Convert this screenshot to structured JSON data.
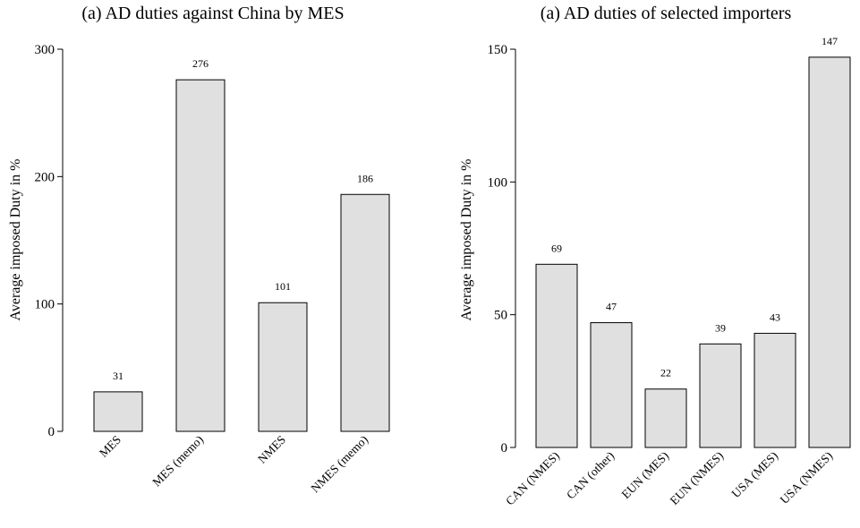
{
  "chart_data": [
    {
      "type": "bar",
      "title": "(a) AD duties against China by MES",
      "ylabel": "Average imposed Duty in %",
      "xlabel": "",
      "ylim": [
        0,
        300
      ],
      "yticks": [
        0,
        100,
        200,
        300
      ],
      "categories": [
        "MES",
        "MES (memo)",
        "NMES",
        "NMES (memo)"
      ],
      "values": [
        31,
        276,
        101,
        186
      ],
      "data_labels": [
        "31",
        "276",
        "101",
        "186"
      ],
      "bar_color": "#e0e0e0",
      "grid": false
    },
    {
      "type": "bar",
      "title": "(a) AD duties of selected importers",
      "ylabel": "Average imposed Duty in %",
      "xlabel": "",
      "ylim": [
        0,
        150
      ],
      "yticks": [
        0,
        50,
        100,
        150
      ],
      "categories": [
        "CAN (NMES)",
        "CAN (other)",
        "EUN (MES)",
        "EUN (NMES)",
        "USA (MES)",
        "USA (NMES)"
      ],
      "values": [
        69,
        47,
        22,
        39,
        43,
        147
      ],
      "data_labels": [
        "69",
        "47",
        "22",
        "39",
        "43",
        "147"
      ],
      "bar_color": "#e0e0e0",
      "grid": false
    }
  ]
}
